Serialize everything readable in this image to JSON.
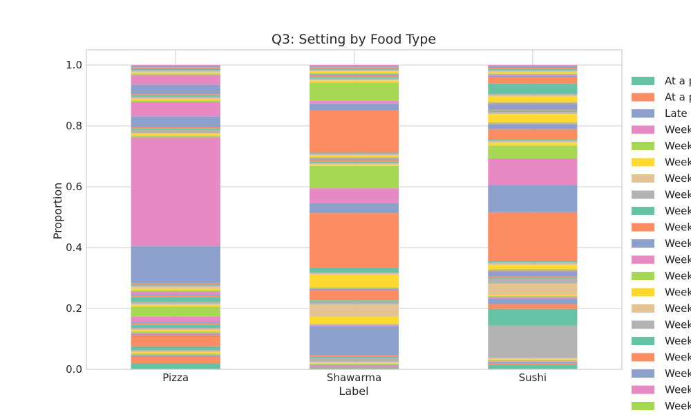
{
  "chart_data": {
    "type": "bar",
    "stacked": true,
    "title": "Q3: Setting by Food Type",
    "xlabel": "Label",
    "ylabel": "Proportion",
    "ylim": [
      0,
      1.05
    ],
    "yticks": [
      "0.0",
      "0.2",
      "0.4",
      "0.6",
      "0.8",
      "1.0"
    ],
    "grid": true,
    "legend_position": "right (clipped)",
    "categories": [
      "Pizza",
      "Shawarma",
      "Sushi"
    ],
    "palette": [
      "#66c2a5",
      "#fc8d62",
      "#8da0cb",
      "#e78ac3",
      "#a6d854",
      "#ffd92f",
      "#e5c494",
      "#b3b3b3"
    ],
    "series": [
      {
        "name": "At a p",
        "color": "#66c2a5",
        "values": [
          0.02,
          0.004,
          0.015
        ]
      },
      {
        "name": "At a p",
        "color": "#fc8d62",
        "values": [
          0.02,
          0.004,
          0.004
        ]
      },
      {
        "name": "Late",
        "color": "#8da0cb",
        "values": [
          0.004,
          0.004,
          0.004
        ]
      },
      {
        "name": "Week",
        "color": "#e78ac3",
        "values": [
          0.003,
          0.004,
          0.004
        ]
      },
      {
        "name": "Week",
        "color": "#a6d854",
        "values": [
          0.004,
          0.004,
          0.004
        ]
      },
      {
        "name": "Week",
        "color": "#ffd92f",
        "values": [
          0.003,
          0.003,
          0.003
        ]
      },
      {
        "name": "Week",
        "color": "#e5c494",
        "values": [
          0.004,
          0.004,
          0.004
        ]
      },
      {
        "name": "Week",
        "color": "#b3b3b3",
        "values": [
          0.004,
          0.013,
          0.107
        ]
      },
      {
        "name": "Week",
        "color": "#66c2a5",
        "values": [
          0.012,
          0.005,
          0.055
        ]
      },
      {
        "name": "Week",
        "color": "#fc8d62",
        "values": [
          0.036,
          0.005,
          0.015
        ]
      },
      {
        "name": "Week",
        "color": "#8da0cb",
        "values": [
          0.004,
          0.104,
          0.02
        ]
      },
      {
        "name": "Week",
        "color": "#e78ac3",
        "values": [
          0.004,
          0.005,
          0.004
        ]
      },
      {
        "name": "Week",
        "color": "#a6d854",
        "values": [
          0.004,
          0.004,
          0.004
        ]
      },
      {
        "name": "Week",
        "color": "#ffd92f",
        "values": [
          0.003,
          0.025,
          0.003
        ]
      },
      {
        "name": "Week",
        "color": "#e5c494",
        "values": [
          0.004,
          0.044,
          0.038
        ]
      },
      {
        "name": "Week",
        "color": "#b3b3b3",
        "values": [
          0.004,
          0.01,
          0.017
        ]
      },
      {
        "name": "Week",
        "color": "#66c2a5",
        "values": [
          0.01,
          0.005,
          0.004
        ]
      },
      {
        "name": "Week",
        "color": "#fc8d62",
        "values": [
          0.004,
          0.035,
          0.004
        ]
      },
      {
        "name": "Week",
        "color": "#8da0cb",
        "values": [
          0.004,
          0.004,
          0.015
        ]
      },
      {
        "name": "Week",
        "color": "#e78ac3",
        "values": [
          0.018,
          0.004,
          0.004
        ]
      },
      {
        "name": "Week",
        "color": "#a6d854",
        "values": [
          0.033,
          0.004,
          0.004
        ]
      },
      {
        "name": "Week",
        "color": "#ffd92f",
        "values": [
          0.005,
          0.045,
          0.014
        ]
      },
      {
        "name": "Week",
        "color": "#e5c494",
        "values": [
          0.004,
          0.004,
          0.004
        ]
      },
      {
        "name": "Week",
        "color": "#b3b3b3",
        "values": [
          0.006,
          0.004,
          0.004
        ]
      },
      {
        "name": "Week",
        "color": "#66c2a5",
        "values": [
          0.016,
          0.017,
          0.004
        ]
      },
      {
        "name": "Week",
        "color": "#fc8d62",
        "values": [
          0.004,
          0.195,
          0.162
        ]
      },
      {
        "name": "Week",
        "color": "#8da0cb",
        "values": [
          0.004,
          0.035,
          0.09
        ]
      },
      {
        "name": "Week",
        "color": "#e78ac3",
        "values": [
          0.01,
          0.054,
          0.088
        ]
      },
      {
        "name": "Week",
        "color": "#a6d854",
        "values": [
          0.004,
          0.08,
          0.043
        ]
      },
      {
        "name": "Week",
        "color": "#ffd92f",
        "values": [
          0.005,
          0.004,
          0.009
        ]
      },
      {
        "name": "Week",
        "color": "#e5c494",
        "values": [
          0.006,
          0.004,
          0.004
        ]
      },
      {
        "name": "Week",
        "color": "#b3b3b3",
        "values": [
          0.004,
          0.004,
          0.004
        ]
      },
      {
        "name": "",
        "color": "#66c2a5",
        "values": [
          0.004,
          0.004,
          0.004
        ]
      },
      {
        "name": "",
        "color": "#fc8d62",
        "values": [
          0.004,
          0.004,
          0.033
        ]
      },
      {
        "name": "",
        "color": "#8da0cb",
        "values": [
          0.118,
          0.004,
          0.015
        ]
      },
      {
        "name": "",
        "color": "#e78ac3",
        "values": [
          0.35,
          0.004,
          0.004
        ]
      },
      {
        "name": "",
        "color": "#a6d854",
        "values": [
          0.005,
          0.004,
          0.004
        ]
      },
      {
        "name": "",
        "color": "#ffd92f",
        "values": [
          0.005,
          0.004,
          0.025
        ]
      },
      {
        "name": "",
        "color": "#e5c494",
        "values": [
          0.004,
          0.004,
          0.004
        ]
      },
      {
        "name": "",
        "color": "#b3b3b3",
        "values": [
          0.01,
          0.004,
          0.004
        ]
      },
      {
        "name": "",
        "color": "#66c2a5",
        "values": [
          0.004,
          0.004,
          0.004
        ]
      },
      {
        "name": "",
        "color": "#fc8d62",
        "values": [
          0.004,
          0.15,
          0.004
        ]
      },
      {
        "name": "",
        "color": "#8da0cb",
        "values": [
          0.035,
          0.025,
          0.019
        ]
      },
      {
        "name": "",
        "color": "#e78ac3",
        "values": [
          0.047,
          0.01,
          0.004
        ]
      },
      {
        "name": "",
        "color": "#a6d854",
        "values": [
          0.004,
          0.065,
          0.004
        ]
      },
      {
        "name": "",
        "color": "#ffd92f",
        "values": [
          0.004,
          0.007,
          0.017
        ]
      },
      {
        "name": "",
        "color": "#e5c494",
        "values": [
          0.004,
          0.004,
          0.004
        ]
      },
      {
        "name": "",
        "color": "#b3b3b3",
        "values": [
          0.004,
          0.004,
          0.004
        ]
      },
      {
        "name": "",
        "color": "#66c2a5",
        "values": [
          0.004,
          0.004,
          0.035
        ]
      },
      {
        "name": "",
        "color": "#fc8d62",
        "values": [
          0.004,
          0.004,
          0.021
        ]
      },
      {
        "name": "",
        "color": "#8da0cb",
        "values": [
          0.031,
          0.004,
          0.004
        ]
      },
      {
        "name": "",
        "color": "#e78ac3",
        "values": [
          0.031,
          0.004,
          0.004
        ]
      },
      {
        "name": "",
        "color": "#a6d854",
        "values": [
          0.004,
          0.004,
          0.004
        ]
      },
      {
        "name": "",
        "color": "#ffd92f",
        "values": [
          0.004,
          0.004,
          0.004
        ]
      },
      {
        "name": "",
        "color": "#e5c494",
        "values": [
          0.004,
          0.004,
          0.004
        ]
      },
      {
        "name": "",
        "color": "#b3b3b3",
        "values": [
          0.004,
          0.004,
          0.004
        ]
      },
      {
        "name": "",
        "color": "#66c2a5",
        "values": [
          0.004,
          0.004,
          0.004
        ]
      },
      {
        "name": "",
        "color": "#fc8d62",
        "values": [
          0.004,
          0.004,
          0.004
        ]
      },
      {
        "name": "",
        "color": "#8da0cb",
        "values": [
          0.004,
          0.004,
          0.004
        ]
      },
      {
        "name": "",
        "color": "#e78ac3",
        "values": [
          0.004,
          0.004,
          0.004
        ]
      }
    ]
  }
}
